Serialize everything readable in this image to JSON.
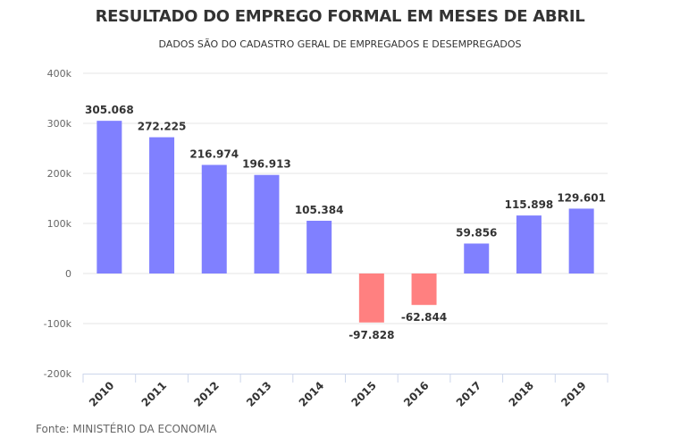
{
  "chart_data": {
    "type": "bar",
    "title": "RESULTADO DO EMPREGO FORMAL EM MESES DE ABRIL",
    "subtitle": "DADOS SÃO DO CADASTRO GERAL DE EMPREGADOS E DESEMPREGADOS",
    "source": "Fonte: MINISTÉRIO DA ECONOMIA",
    "categories": [
      "2010",
      "2011",
      "2012",
      "2013",
      "2014",
      "2015",
      "2016",
      "2017",
      "2018",
      "2019"
    ],
    "values": [
      305068,
      272225,
      216974,
      196913,
      105384,
      -97828,
      -62844,
      59856,
      115898,
      129601
    ],
    "data_labels": [
      "305.068",
      "272.225",
      "216.974",
      "196.913",
      "105.384",
      "-97.828",
      "-62.844",
      "59.856",
      "115.898",
      "129.601"
    ],
    "xlabel": "",
    "ylabel": "",
    "ylim": [
      -200000,
      400000
    ],
    "yticks": [
      400000,
      300000,
      200000,
      100000,
      0,
      -100000,
      -200000
    ],
    "ytick_labels": [
      "400k",
      "300k",
      "200k",
      "100k",
      "0",
      "-100k",
      "-200k"
    ],
    "grid": true,
    "colors": {
      "positive": "#8080ff",
      "negative": "#ff8080"
    }
  }
}
